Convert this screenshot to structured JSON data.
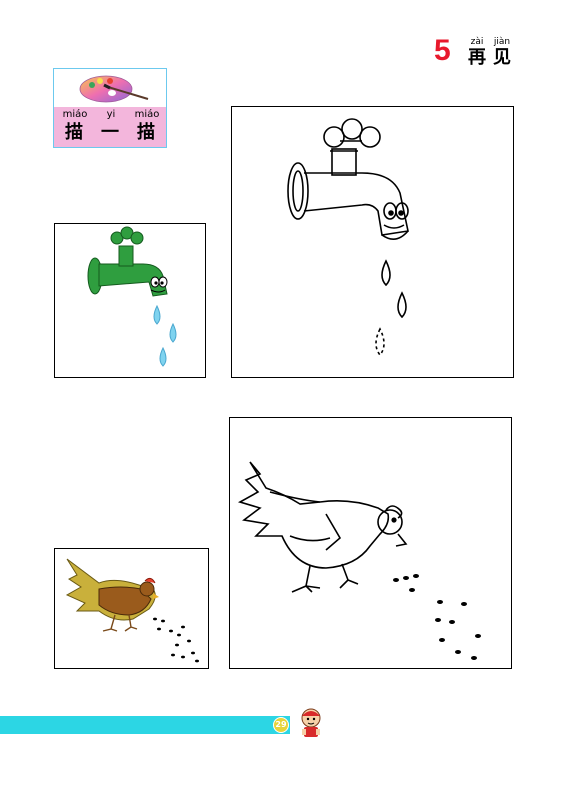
{
  "lesson": {
    "number": "5",
    "title_chars": [
      {
        "pinyin": "zài",
        "hanzi": "再"
      },
      {
        "pinyin": "jiàn",
        "hanzi": "见"
      }
    ]
  },
  "activity_badge": {
    "pinyin": [
      "miáo",
      "yi",
      "miáo"
    ],
    "hanzi": [
      "描",
      "一",
      "描"
    ],
    "icon": "paint-palette-icon"
  },
  "pictures": {
    "faucet_color": "green-faucet-with-water-drops",
    "faucet_outline": "faucet-outline-with-dashed-drops",
    "hen_color": "brown-hen-pecking-grain",
    "hen_outline": "hen-outline-with-dashed-grain"
  },
  "colors": {
    "lesson_number": "#e8192c",
    "badge_pink": "#f3b6dc",
    "badge_border": "#6cc9ee",
    "footer_bar": "#2cd6e4",
    "faucet_green": "#2f9e3f",
    "drop_blue": "#7fd3ef",
    "hen_yellow": "#c9b03b",
    "hen_brown": "#9a5b1c"
  },
  "footer": {
    "page_number": "29",
    "mascot_icon": "boy-mascot-icon"
  }
}
